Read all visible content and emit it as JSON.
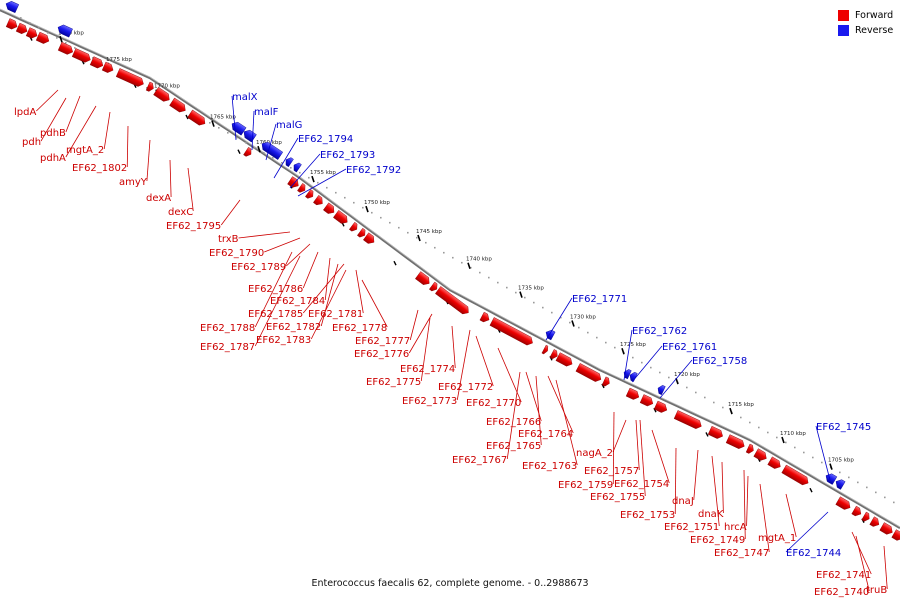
{
  "caption": "Enterococcus faecalis 62, complete genome. - 0..2988673",
  "legend": [
    {
      "label": "Forward",
      "color": "#ee0000"
    },
    {
      "label": "Reverse",
      "color": "#1a1aee"
    }
  ],
  "colors": {
    "forward": "#ee0000",
    "reverse": "#1a1aee",
    "forward_label": "#cc0000",
    "reverse_label": "#0000cc",
    "axis": "#777777"
  },
  "ticks": [
    "1780 kbp",
    "1775 kbp",
    "1770 kbp",
    "1765 kbp",
    "1760 kbp",
    "1755 kbp",
    "1750 kbp",
    "1745 kbp",
    "1740 kbp",
    "1735 kbp",
    "1730 kbp",
    "1725 kbp",
    "1720 kbp",
    "1715 kbp",
    "1710 kbp",
    "1705 kbp"
  ],
  "genes": [
    {
      "name": "lpdA",
      "strand": "forward"
    },
    {
      "name": "pdhB",
      "strand": "forward"
    },
    {
      "name": "pdh",
      "strand": "forward"
    },
    {
      "name": "pdhA",
      "strand": "forward"
    },
    {
      "name": "mgtA_2",
      "strand": "forward"
    },
    {
      "name": "EF62_1802",
      "strand": "forward"
    },
    {
      "name": "amyY",
      "strand": "forward"
    },
    {
      "name": "dexA",
      "strand": "forward"
    },
    {
      "name": "dexC",
      "strand": "forward"
    },
    {
      "name": "EF62_1795",
      "strand": "forward"
    },
    {
      "name": "malX",
      "strand": "reverse"
    },
    {
      "name": "malF",
      "strand": "reverse"
    },
    {
      "name": "malG",
      "strand": "reverse"
    },
    {
      "name": "EF62_1794",
      "strand": "reverse"
    },
    {
      "name": "EF62_1793",
      "strand": "reverse"
    },
    {
      "name": "EF62_1792",
      "strand": "reverse"
    },
    {
      "name": "trxB",
      "strand": "forward"
    },
    {
      "name": "EF62_1790",
      "strand": "forward"
    },
    {
      "name": "EF62_1789",
      "strand": "forward"
    },
    {
      "name": "EF62_1786",
      "strand": "forward"
    },
    {
      "name": "EF62_1784",
      "strand": "forward"
    },
    {
      "name": "EF62_1785",
      "strand": "forward"
    },
    {
      "name": "EF62_1781",
      "strand": "forward"
    },
    {
      "name": "EF62_1788",
      "strand": "forward"
    },
    {
      "name": "EF62_1782",
      "strand": "forward"
    },
    {
      "name": "EF62_1778",
      "strand": "forward"
    },
    {
      "name": "EF62_1787",
      "strand": "forward"
    },
    {
      "name": "EF62_1783",
      "strand": "forward"
    },
    {
      "name": "EF62_1777",
      "strand": "forward"
    },
    {
      "name": "EF62_1776",
      "strand": "forward"
    },
    {
      "name": "EF62_1774",
      "strand": "forward"
    },
    {
      "name": "EF62_1775",
      "strand": "forward"
    },
    {
      "name": "EF62_1772",
      "strand": "forward"
    },
    {
      "name": "EF62_1773",
      "strand": "forward"
    },
    {
      "name": "EF62_1770",
      "strand": "forward"
    },
    {
      "name": "EF62_1771",
      "strand": "reverse"
    },
    {
      "name": "EF62_1766",
      "strand": "forward"
    },
    {
      "name": "EF62_1764",
      "strand": "forward"
    },
    {
      "name": "EF62_1765",
      "strand": "forward"
    },
    {
      "name": "EF62_1767",
      "strand": "forward"
    },
    {
      "name": "EF62_1763",
      "strand": "forward"
    },
    {
      "name": "EF62_1762",
      "strand": "reverse"
    },
    {
      "name": "EF62_1761",
      "strand": "reverse"
    },
    {
      "name": "EF62_1758",
      "strand": "reverse"
    },
    {
      "name": "nagA_2",
      "strand": "forward"
    },
    {
      "name": "EF62_1757",
      "strand": "forward"
    },
    {
      "name": "EF62_1759",
      "strand": "forward"
    },
    {
      "name": "EF62_1754",
      "strand": "forward"
    },
    {
      "name": "EF62_1755",
      "strand": "forward"
    },
    {
      "name": "dnaJ",
      "strand": "forward"
    },
    {
      "name": "EF62_1753",
      "strand": "forward"
    },
    {
      "name": "dnaK",
      "strand": "forward"
    },
    {
      "name": "EF62_1751",
      "strand": "forward"
    },
    {
      "name": "hrcA",
      "strand": "forward"
    },
    {
      "name": "EF62_1749",
      "strand": "forward"
    },
    {
      "name": "EF62_1747",
      "strand": "forward"
    },
    {
      "name": "mgtA_1",
      "strand": "forward"
    },
    {
      "name": "EF62_1745",
      "strand": "reverse"
    },
    {
      "name": "EF62_1744",
      "strand": "reverse"
    },
    {
      "name": "EF62_1741",
      "strand": "forward"
    },
    {
      "name": "EF62_1740",
      "strand": "forward"
    },
    {
      "name": "truB",
      "strand": "forward"
    }
  ]
}
